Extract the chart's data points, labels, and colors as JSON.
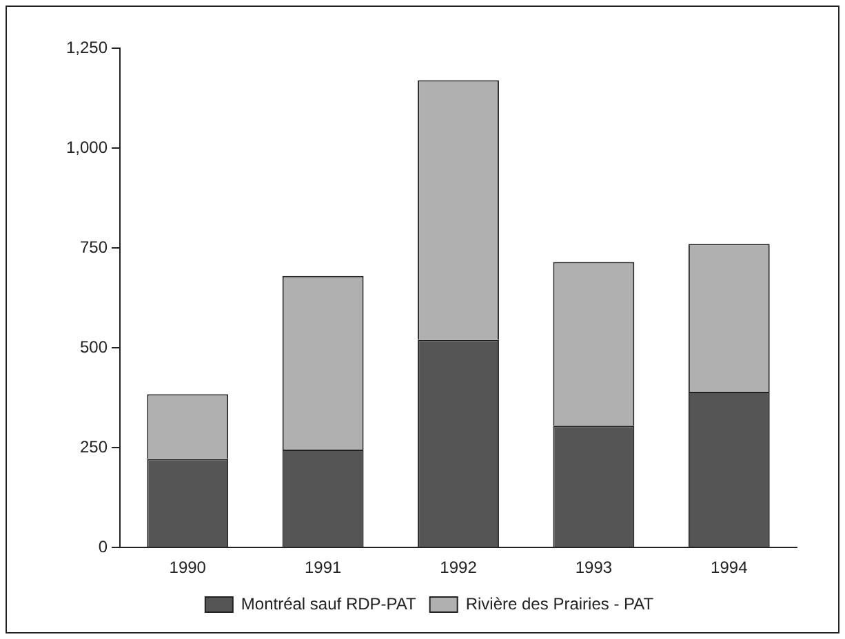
{
  "chart_data": {
    "type": "bar",
    "stacked": true,
    "categories": [
      "1990",
      "1991",
      "1992",
      "1993",
      "1994"
    ],
    "series": [
      {
        "name": "Montréal sauf RDP-PAT",
        "color": "#555555",
        "values": [
          222,
          245,
          520,
          305,
          390
        ]
      },
      {
        "name": "Rivière des Prairies - PAT",
        "color": "#b0b0b0",
        "values": [
          162,
          435,
          650,
          410,
          370
        ]
      }
    ],
    "ylim": [
      0,
      1250
    ],
    "yticks": [
      {
        "value": 0,
        "label": "0"
      },
      {
        "value": 250,
        "label": "250"
      },
      {
        "value": 500,
        "label": "500"
      },
      {
        "value": 750,
        "label": "750"
      },
      {
        "value": 1000,
        "label": "1,000"
      },
      {
        "value": 1250,
        "label": "1,250"
      }
    ],
    "grid": false,
    "legend": "bottom"
  }
}
